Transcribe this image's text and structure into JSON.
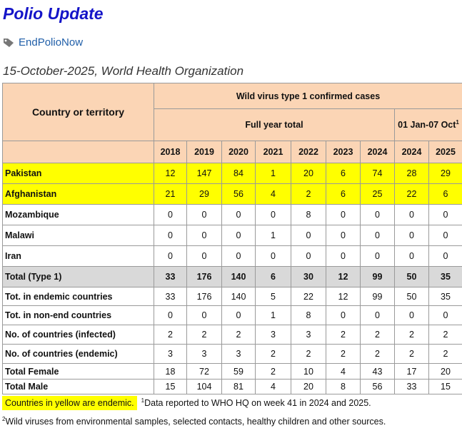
{
  "header": {
    "title": "Polio Update",
    "tag": "EndPolioNow",
    "date": "15-October-2025, World Health Organization"
  },
  "table": {
    "header": {
      "country": "Country or territory",
      "group": "Wild virus type 1 confirmed cases",
      "full_year": "Full year total",
      "period": "01 Jan-07 Oct",
      "period_note": "1",
      "years": [
        2018,
        2019,
        2020,
        2021,
        2022,
        2023,
        2024,
        2024,
        2025
      ]
    },
    "rows": [
      {
        "label": "Pakistan",
        "values": [
          12,
          147,
          84,
          1,
          20,
          6,
          74,
          28,
          29
        ]
      },
      {
        "label": "Afghanistan",
        "values": [
          21,
          29,
          56,
          4,
          2,
          6,
          25,
          22,
          6
        ]
      },
      {
        "label": "Mozambique",
        "values": [
          0,
          0,
          0,
          0,
          8,
          0,
          0,
          0,
          0
        ]
      },
      {
        "label": "Malawi",
        "values": [
          0,
          0,
          0,
          1,
          0,
          0,
          0,
          0,
          0
        ]
      },
      {
        "label": "Iran",
        "values": [
          0,
          0,
          0,
          0,
          0,
          0,
          0,
          0,
          0
        ]
      },
      {
        "label": "Total (Type 1)",
        "values": [
          33,
          176,
          140,
          6,
          30,
          12,
          99,
          50,
          35
        ]
      },
      {
        "label": "Tot. in endemic countries",
        "values": [
          33,
          176,
          140,
          5,
          22,
          12,
          99,
          50,
          35
        ]
      },
      {
        "label": "Tot. in non-end countries",
        "values": [
          0,
          0,
          0,
          1,
          8,
          0,
          0,
          0,
          0
        ]
      },
      {
        "label": "No. of countries (infected)",
        "values": [
          2,
          2,
          2,
          3,
          3,
          2,
          2,
          2,
          2
        ]
      },
      {
        "label": "No. of countries (endemic)",
        "values": [
          3,
          3,
          3,
          2,
          2,
          2,
          2,
          2,
          2
        ]
      },
      {
        "label": "Total Female",
        "values": [
          18,
          72,
          59,
          2,
          10,
          4,
          43,
          17,
          20
        ]
      },
      {
        "label": "Total Male",
        "values": [
          15,
          104,
          81,
          4,
          20,
          8,
          56,
          33,
          15
        ]
      }
    ]
  },
  "footnotes": {
    "legend": "Countries in yellow are endemic.",
    "note1": {
      "marker": "1",
      "text": "Data reported to WHO HQ on week 41 in 2024 and 2025."
    },
    "note2": {
      "marker": "2",
      "text": "Wild viruses from environmental samples, selected contacts, healthy children and other sources."
    }
  }
}
